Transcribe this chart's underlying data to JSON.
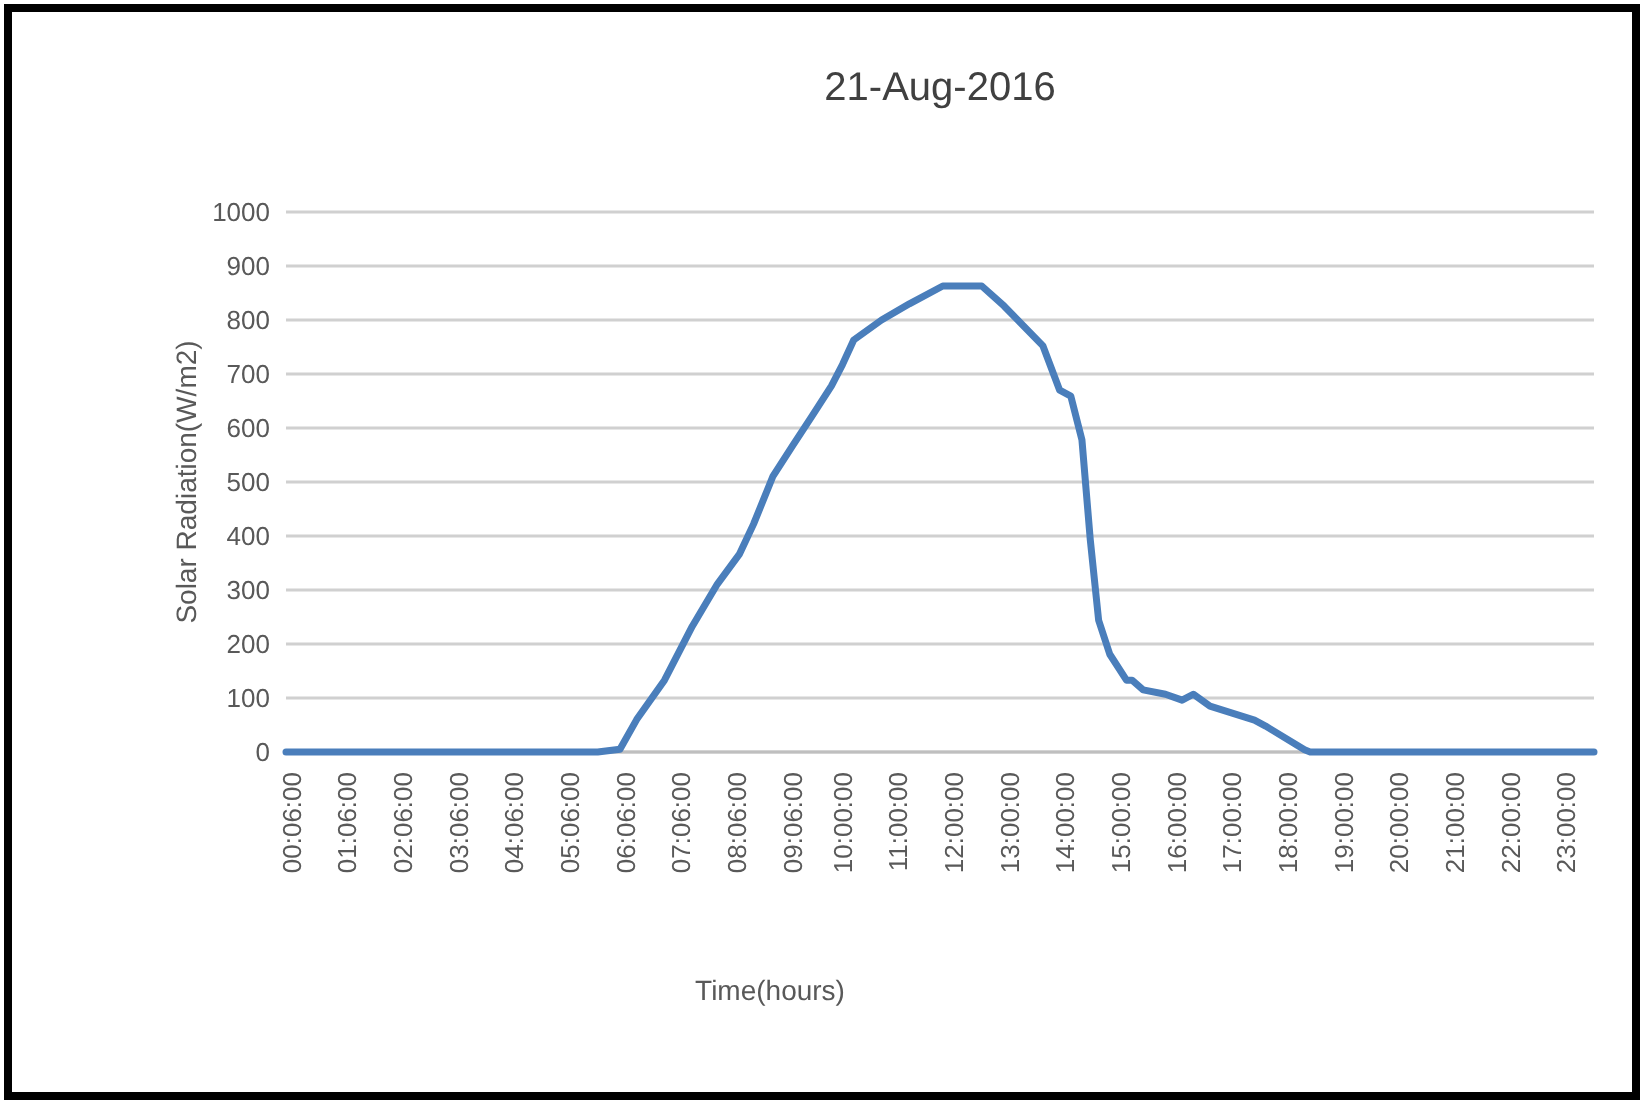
{
  "chart_data": {
    "type": "line",
    "title": "21-Aug-2016",
    "xlabel": "Time(hours)",
    "ylabel": "Solar Radiation(W/m2)",
    "xlim": [
      0,
      23.5
    ],
    "xticks": [
      {
        "value": 0.1,
        "label": "00:06:00"
      },
      {
        "value": 1.1,
        "label": "01:06:00"
      },
      {
        "value": 2.1,
        "label": "02:06:00"
      },
      {
        "value": 3.1,
        "label": "03:06:00"
      },
      {
        "value": 4.1,
        "label": "04:06:00"
      },
      {
        "value": 5.1,
        "label": "05:06:00"
      },
      {
        "value": 6.1,
        "label": "06:06:00"
      },
      {
        "value": 7.1,
        "label": "07:06:00"
      },
      {
        "value": 8.1,
        "label": "08:06:00"
      },
      {
        "value": 9.1,
        "label": "09:06:00"
      },
      {
        "value": 10,
        "label": "10:00:00"
      },
      {
        "value": 11,
        "label": "11:00:00"
      },
      {
        "value": 12,
        "label": "12:00:00"
      },
      {
        "value": 13,
        "label": "13:00:00"
      },
      {
        "value": 14,
        "label": "14:00:00"
      },
      {
        "value": 15,
        "label": "15:00:00"
      },
      {
        "value": 16,
        "label": "16:00:00"
      },
      {
        "value": 17,
        "label": "17:00:00"
      },
      {
        "value": 18,
        "label": "18:00:00"
      },
      {
        "value": 19,
        "label": "19:00:00"
      },
      {
        "value": 20,
        "label": "20:00:00"
      },
      {
        "value": 21,
        "label": "21:00:00"
      },
      {
        "value": 22,
        "label": "22:00:00"
      },
      {
        "value": 23,
        "label": "23:00:00"
      }
    ],
    "ylim": [
      0,
      1000
    ],
    "yticks": [
      0,
      100,
      200,
      300,
      400,
      500,
      600,
      700,
      800,
      900,
      1000
    ],
    "grid": "y",
    "marker": "none",
    "line_style": "solid",
    "series": [
      {
        "color": "#4a7ebb",
        "x": [
          0,
          2,
          4,
          5.6,
          6.0,
          6.3,
          6.8,
          7.3,
          7.75,
          8.15,
          8.4,
          8.75,
          9.1,
          9.45,
          9.8,
          10.0,
          10.2,
          10.7,
          11.2,
          11.8,
          12.5,
          12.9,
          13.6,
          13.9,
          14.1,
          14.3,
          14.45,
          14.6,
          14.8,
          15.1,
          15.2,
          15.4,
          15.8,
          16.1,
          16.3,
          16.6,
          17.4,
          17.6,
          18.3,
          18.4,
          20,
          22,
          23.5
        ],
        "values": [
          0,
          0,
          0,
          0,
          5,
          60,
          133,
          233,
          311,
          367,
          422,
          511,
          567,
          622,
          678,
          718,
          763,
          800,
          830,
          863,
          863,
          826,
          752,
          670,
          659,
          578,
          393,
          244,
          181,
          133,
          133,
          115,
          107,
          96,
          107,
          85,
          59,
          48,
          4,
          0,
          0,
          0,
          0
        ]
      }
    ]
  }
}
